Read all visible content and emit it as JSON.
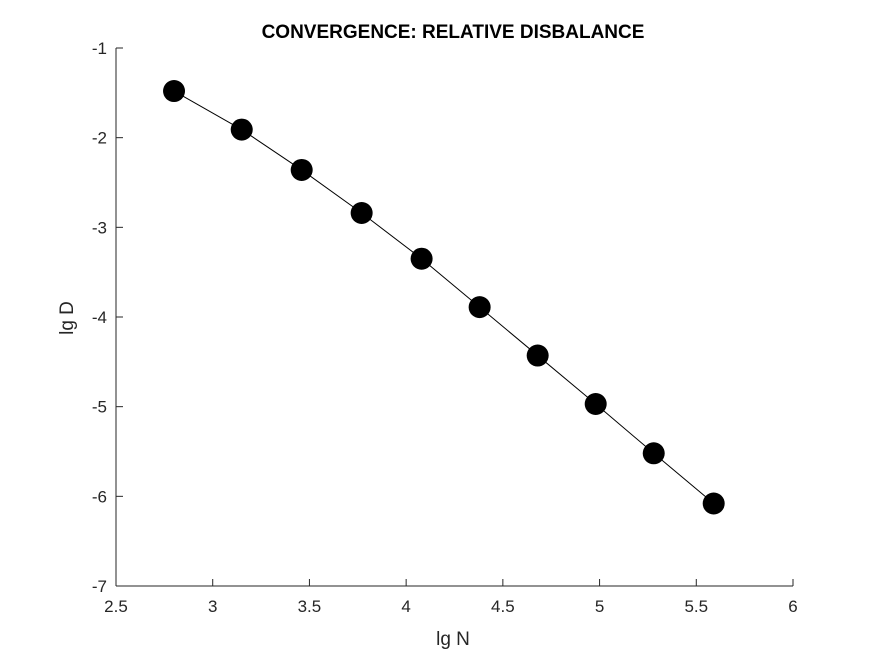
{
  "chart_data": {
    "type": "line",
    "title": "CONVERGENCE: RELATIVE DISBALANCE",
    "xlabel": "lg N",
    "ylabel": "lg D",
    "xlim": [
      2.5,
      6
    ],
    "ylim": [
      -7,
      -1
    ],
    "xticks": [
      "2.5",
      "3",
      "3.5",
      "4",
      "4.5",
      "5",
      "5.5",
      "6"
    ],
    "yticks": [
      "-1",
      "-2",
      "-3",
      "-4",
      "-5",
      "-6",
      "-7"
    ],
    "grid": false,
    "legend": "none",
    "marker": "filled-circle",
    "line_color": "#000000",
    "marker_color": "#000000",
    "series": [
      {
        "x": [
          2.8,
          3.15,
          3.46,
          3.77,
          4.08,
          4.38,
          4.68,
          4.98,
          5.28,
          5.59
        ],
        "values": [
          -1.48,
          -1.91,
          -2.36,
          -2.84,
          -3.35,
          -3.89,
          -4.43,
          -4.97,
          -5.52,
          -6.08
        ]
      }
    ]
  }
}
